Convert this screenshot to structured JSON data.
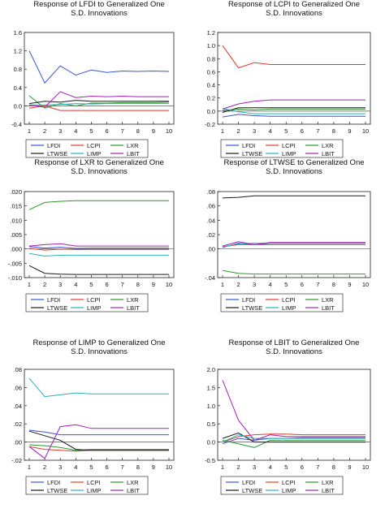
{
  "legend_labels": [
    "LFDI",
    "LCPI",
    "LXR",
    "LTWSE",
    "LIMP",
    "LBIT"
  ],
  "series_colors": {
    "LFDI": "#3a55d6",
    "LCPI": "#e43a2e",
    "LXR": "#2a9a2a",
    "LTWSE": "#1a1a1a",
    "LIMP": "#2ab2b2",
    "LBIT": "#a321b8"
  },
  "chart_data": [
    {
      "type": "line",
      "title": "Response of LFDI to Generalized One",
      "subtitle": "S.D. Innovations",
      "x": [
        1,
        2,
        3,
        4,
        5,
        6,
        7,
        8,
        9,
        10
      ],
      "ylim": [
        -0.4,
        1.6
      ],
      "yticks": [
        -0.4,
        0.0,
        0.4,
        0.8,
        1.2,
        1.6
      ],
      "ytick_labels": [
        "-0.4",
        "0.0",
        "0.4",
        "0.8",
        "1.2",
        "1.6"
      ],
      "xtick_labels": [
        "1",
        "2",
        "3",
        "4",
        "5",
        "6",
        "7",
        "8",
        "9",
        "10"
      ],
      "legend": "bottom",
      "series": [
        {
          "name": "LFDI",
          "values": [
            1.2,
            0.5,
            0.87,
            0.67,
            0.78,
            0.73,
            0.76,
            0.75,
            0.76,
            0.75
          ]
        },
        {
          "name": "LCPI",
          "values": [
            -0.05,
            0.0,
            -0.1,
            -0.1,
            -0.1,
            -0.1,
            -0.1,
            -0.1,
            -0.1,
            -0.1
          ]
        },
        {
          "name": "LXR",
          "values": [
            0.22,
            -0.05,
            0.05,
            0.0,
            0.06,
            0.06,
            0.07,
            0.07,
            0.07,
            0.08
          ]
        },
        {
          "name": "LTWSE",
          "values": [
            0.05,
            0.1,
            0.08,
            0.12,
            0.1,
            0.1,
            0.1,
            0.1,
            0.1,
            0.1
          ]
        },
        {
          "name": "LIMP",
          "values": [
            0.02,
            0.02,
            0.03,
            0.05,
            0.04,
            0.05,
            0.05,
            0.05,
            0.05,
            0.05
          ]
        },
        {
          "name": "LBIT",
          "values": [
            0.02,
            -0.03,
            0.31,
            0.18,
            0.21,
            0.2,
            0.21,
            0.2,
            0.2,
            0.2
          ]
        }
      ]
    },
    {
      "type": "line",
      "title": "Response of LCPI to Generalized One",
      "subtitle": "S.D. Innovations",
      "x": [
        1,
        2,
        3,
        4,
        5,
        6,
        7,
        8,
        9,
        10
      ],
      "ylim": [
        -0.2,
        1.2
      ],
      "yticks": [
        -0.2,
        0.0,
        0.2,
        0.4,
        0.6,
        0.8,
        1.0,
        1.2
      ],
      "ytick_labels": [
        "-0.2",
        "0.0",
        "0.2",
        "0.4",
        "0.6",
        "0.8",
        "1.0",
        "1.2"
      ],
      "xtick_labels": [
        "1",
        "2",
        "3",
        "4",
        "5",
        "6",
        "7",
        "8",
        "9",
        "10"
      ],
      "legend": "bottom",
      "series": [
        {
          "name": "LFDI",
          "values": [
            -0.09,
            -0.05,
            -0.07,
            -0.08,
            -0.08,
            -0.08,
            -0.08,
            -0.08,
            -0.08,
            -0.08
          ]
        },
        {
          "name": "LCPI",
          "values": [
            1.0,
            0.66,
            0.74,
            0.71,
            0.71,
            0.71,
            0.71,
            0.71,
            0.71,
            0.71
          ]
        },
        {
          "name": "LXR",
          "values": [
            0.01,
            0.03,
            0.02,
            0.03,
            0.03,
            0.03,
            0.03,
            0.03,
            0.03,
            0.03
          ]
        },
        {
          "name": "LTWSE",
          "values": [
            -0.02,
            0.05,
            0.05,
            0.05,
            0.05,
            0.05,
            0.05,
            0.05,
            0.05,
            0.05
          ]
        },
        {
          "name": "LIMP",
          "values": [
            0.04,
            -0.01,
            -0.04,
            -0.04,
            -0.04,
            -0.04,
            -0.04,
            -0.04,
            -0.04,
            -0.04
          ]
        },
        {
          "name": "LBIT",
          "values": [
            0.03,
            0.11,
            0.15,
            0.17,
            0.17,
            0.17,
            0.17,
            0.17,
            0.17,
            0.17
          ]
        }
      ]
    },
    {
      "type": "line",
      "title": "Response of LXR to Generalized One",
      "subtitle": "S.D. Innovations",
      "x": [
        1,
        2,
        3,
        4,
        5,
        6,
        7,
        8,
        9,
        10
      ],
      "ylim": [
        -0.01,
        0.02
      ],
      "yticks": [
        -0.01,
        -0.005,
        0.0,
        0.005,
        0.01,
        0.015,
        0.02
      ],
      "ytick_labels": [
        "-.010",
        "-.005",
        ".000",
        ".005",
        ".010",
        ".015",
        ".020"
      ],
      "xtick_labels": [
        "1",
        "2",
        "3",
        "4",
        "5",
        "6",
        "7",
        "8",
        "9",
        "10"
      ],
      "legend": "bottom",
      "series": [
        {
          "name": "LFDI",
          "values": [
            0.0008,
            0.0003,
            0.0006,
            0.0002,
            0.0003,
            0.0003,
            0.0003,
            0.0003,
            0.0003,
            0.0003
          ]
        },
        {
          "name": "LCPI",
          "values": [
            0.0002,
            -0.0004,
            -0.0001,
            -0.0002,
            -0.0002,
            -0.0002,
            -0.0002,
            -0.0002,
            -0.0002,
            -0.0002
          ]
        },
        {
          "name": "LXR",
          "values": [
            0.0137,
            0.0162,
            0.0166,
            0.0168,
            0.0168,
            0.0168,
            0.0168,
            0.0168,
            0.0168,
            0.0168
          ]
        },
        {
          "name": "LTWSE",
          "values": [
            -0.0058,
            -0.0085,
            -0.0088,
            -0.0089,
            -0.0089,
            -0.0089,
            -0.0089,
            -0.0089,
            -0.0089,
            -0.0089
          ]
        },
        {
          "name": "LIMP",
          "values": [
            -0.0016,
            -0.0025,
            -0.0022,
            -0.0022,
            -0.0022,
            -0.0022,
            -0.0022,
            -0.0022,
            -0.0022,
            -0.0022
          ]
        },
        {
          "name": "LBIT",
          "values": [
            0.001,
            0.0015,
            0.0018,
            0.001,
            0.001,
            0.001,
            0.001,
            0.001,
            0.001,
            0.001
          ]
        }
      ]
    },
    {
      "type": "line",
      "title": "Response of LTWSE to Generalized One",
      "subtitle": "S.D. Innovations",
      "x": [
        1,
        2,
        3,
        4,
        5,
        6,
        7,
        8,
        9,
        10
      ],
      "ylim": [
        -0.04,
        0.08
      ],
      "yticks": [
        -0.04,
        0.0,
        0.02,
        0.04,
        0.06,
        0.08
      ],
      "ytick_labels": [
        "-.04",
        ".00",
        ".02",
        ".04",
        ".06",
        ".08"
      ],
      "xtick_labels": [
        "1",
        "2",
        "3",
        "4",
        "5",
        "6",
        "7",
        "8",
        "9",
        "10"
      ],
      "legend": "bottom",
      "series": [
        {
          "name": "LFDI",
          "values": [
            0.002,
            0.008,
            0.006,
            0.008,
            0.008,
            0.008,
            0.008,
            0.008,
            0.008,
            0.008
          ]
        },
        {
          "name": "LCPI",
          "values": [
            0.003,
            0.006,
            0.006,
            0.006,
            0.006,
            0.006,
            0.006,
            0.006,
            0.006,
            0.006
          ]
        },
        {
          "name": "LXR",
          "values": [
            -0.03,
            -0.034,
            -0.035,
            -0.035,
            -0.035,
            -0.035,
            -0.035,
            -0.035,
            -0.035,
            -0.035
          ]
        },
        {
          "name": "LTWSE",
          "values": [
            0.071,
            0.072,
            0.074,
            0.074,
            0.074,
            0.074,
            0.074,
            0.074,
            0.074,
            0.074
          ]
        },
        {
          "name": "LIMP",
          "values": [
            0.003,
            0.007,
            0.008,
            0.008,
            0.008,
            0.008,
            0.008,
            0.008,
            0.008,
            0.008
          ]
        },
        {
          "name": "LBIT",
          "values": [
            0.004,
            0.01,
            0.006,
            0.009,
            0.009,
            0.009,
            0.009,
            0.009,
            0.009,
            0.009
          ]
        }
      ]
    },
    {
      "type": "line",
      "title": "Response of LIMP to Generalized One",
      "subtitle": "S.D. Innovations",
      "x": [
        1,
        2,
        3,
        4,
        5,
        6,
        7,
        8,
        9,
        10
      ],
      "ylim": [
        -0.02,
        0.08
      ],
      "yticks": [
        -0.02,
        0.0,
        0.02,
        0.04,
        0.06,
        0.08
      ],
      "ytick_labels": [
        "-.02",
        ".00",
        ".02",
        ".04",
        ".06",
        ".08"
      ],
      "xtick_labels": [
        "1",
        "2",
        "3",
        "4",
        "5",
        "6",
        "7",
        "8",
        "9",
        "10"
      ],
      "legend": "bottom",
      "series": [
        {
          "name": "LFDI",
          "values": [
            0.013,
            0.011,
            0.008,
            0.008,
            0.008,
            0.008,
            0.008,
            0.008,
            0.008,
            0.008
          ]
        },
        {
          "name": "LCPI",
          "values": [
            -0.005,
            -0.008,
            -0.009,
            -0.01,
            -0.009,
            -0.009,
            -0.009,
            -0.009,
            -0.009,
            -0.009
          ]
        },
        {
          "name": "LXR",
          "values": [
            -0.003,
            -0.004,
            -0.006,
            -0.009,
            -0.008,
            -0.008,
            -0.008,
            -0.008,
            -0.008,
            -0.008
          ]
        },
        {
          "name": "LTWSE",
          "values": [
            0.012,
            0.007,
            0.002,
            -0.008,
            -0.009,
            -0.009,
            -0.009,
            -0.009,
            -0.009,
            -0.009
          ]
        },
        {
          "name": "LIMP",
          "values": [
            0.07,
            0.05,
            0.052,
            0.054,
            0.053,
            0.053,
            0.053,
            0.053,
            0.053,
            0.053
          ]
        },
        {
          "name": "LBIT",
          "values": [
            -0.005,
            -0.018,
            0.017,
            0.019,
            0.015,
            0.015,
            0.015,
            0.015,
            0.015,
            0.015
          ]
        }
      ]
    },
    {
      "type": "line",
      "title": "Response of LBIT to Generalized One",
      "subtitle": "S.D. Innovations",
      "x": [
        1,
        2,
        3,
        4,
        5,
        6,
        7,
        8,
        9,
        10
      ],
      "ylim": [
        -0.5,
        2.0
      ],
      "yticks": [
        -0.5,
        0.0,
        0.5,
        1.0,
        1.5,
        2.0
      ],
      "ytick_labels": [
        "-0.5",
        "0.0",
        "0.5",
        "1.0",
        "1.5",
        "2.0"
      ],
      "xtick_labels": [
        "1",
        "2",
        "3",
        "4",
        "5",
        "6",
        "7",
        "8",
        "9",
        "10"
      ],
      "legend": "bottom",
      "series": [
        {
          "name": "LFDI",
          "values": [
            -0.05,
            0.1,
            0.05,
            0.1,
            0.1,
            0.12,
            0.12,
            0.12,
            0.12,
            0.12
          ]
        },
        {
          "name": "LCPI",
          "values": [
            0.0,
            0.15,
            0.2,
            0.22,
            0.22,
            0.2,
            0.2,
            0.2,
            0.2,
            0.2
          ]
        },
        {
          "name": "LXR",
          "values": [
            0.05,
            -0.05,
            -0.15,
            0.05,
            0.05,
            0.05,
            0.05,
            0.05,
            0.05,
            0.05
          ]
        },
        {
          "name": "LTWSE",
          "values": [
            0.1,
            0.25,
            0.0,
            0.0,
            0.0,
            0.0,
            0.0,
            0.0,
            0.0,
            0.0
          ]
        },
        {
          "name": "LIMP",
          "values": [
            0.0,
            0.2,
            0.1,
            0.1,
            0.1,
            0.1,
            0.1,
            0.1,
            0.1,
            0.1
          ]
        },
        {
          "name": "LBIT",
          "values": [
            1.7,
            0.6,
            0.05,
            0.2,
            0.15,
            0.15,
            0.15,
            0.15,
            0.15,
            0.15
          ]
        }
      ]
    }
  ]
}
